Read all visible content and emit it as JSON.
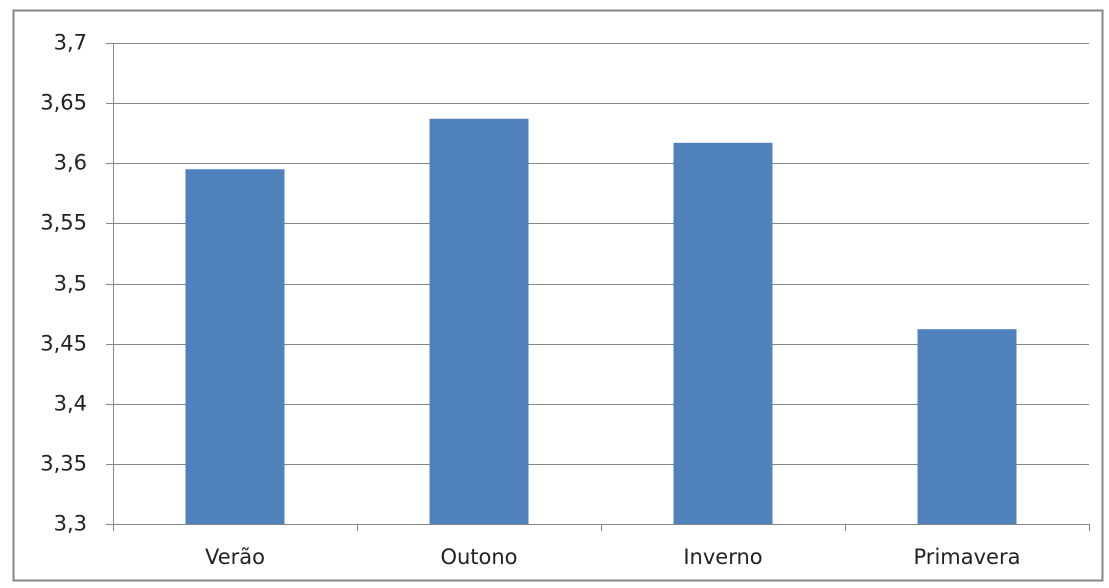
{
  "chart_data": {
    "type": "bar",
    "categories": [
      "Verão",
      "Outono",
      "Inverno",
      "Primavera"
    ],
    "values": [
      3.595,
      3.637,
      3.617,
      3.462
    ],
    "ylim": [
      3.3,
      3.7
    ],
    "y_ticks": [
      3.3,
      3.35,
      3.4,
      3.45,
      3.5,
      3.55,
      3.6,
      3.65,
      3.7
    ],
    "y_tick_labels": [
      "3,3",
      "3,35",
      "3,4",
      "3,45",
      "3,5",
      "3,55",
      "3,6",
      "3,65",
      "3,7"
    ],
    "grid": true,
    "legend": "none",
    "colors": {
      "bar": "#4f81bd",
      "grid": "#868686",
      "frame": "#868686",
      "axis": "#868686"
    }
  }
}
